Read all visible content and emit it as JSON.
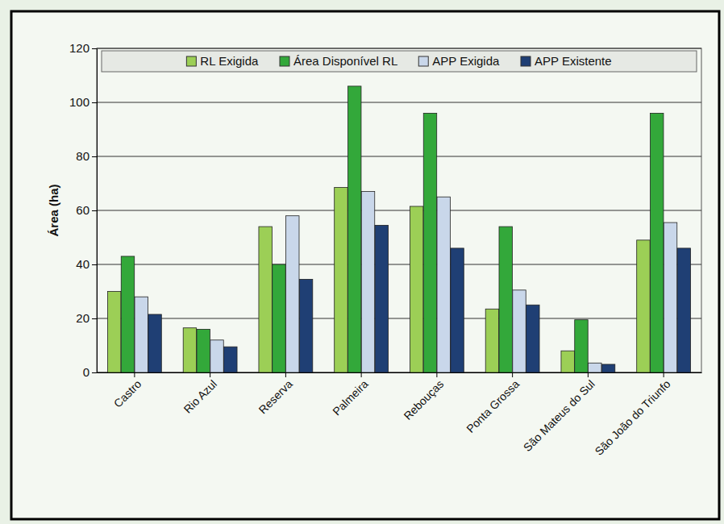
{
  "chart_data": {
    "type": "bar",
    "y_label": "Área (ha)",
    "categories": [
      "Castro",
      "Rio Azul",
      "Reserva",
      "Palmeira",
      "Rebouças",
      "Ponta Grossa",
      "São Mateus do Sul",
      "São João do Triunfo"
    ],
    "series": [
      {
        "name": "RL Exigida",
        "color": "#9ccf56",
        "values": [
          30,
          16.5,
          54,
          68.5,
          61.5,
          23.5,
          8,
          49
        ]
      },
      {
        "name": "Área Disponível RL",
        "color": "#33a83a",
        "values": [
          43,
          16,
          40,
          106,
          96,
          54,
          19.5,
          96
        ]
      },
      {
        "name": "APP Exigida",
        "color": "#c9d7ea",
        "values": [
          28,
          12,
          58,
          67,
          65,
          30.5,
          3.5,
          55.5
        ]
      },
      {
        "name": "APP Existente",
        "color": "#1f3f74",
        "values": [
          21.5,
          9.5,
          34.5,
          54.5,
          46,
          25,
          3,
          46
        ]
      }
    ],
    "ylim": [
      0,
      120
    ],
    "yticks": [
      0,
      20,
      40,
      60,
      80,
      100,
      120
    ],
    "grid": true,
    "legend": "top"
  }
}
